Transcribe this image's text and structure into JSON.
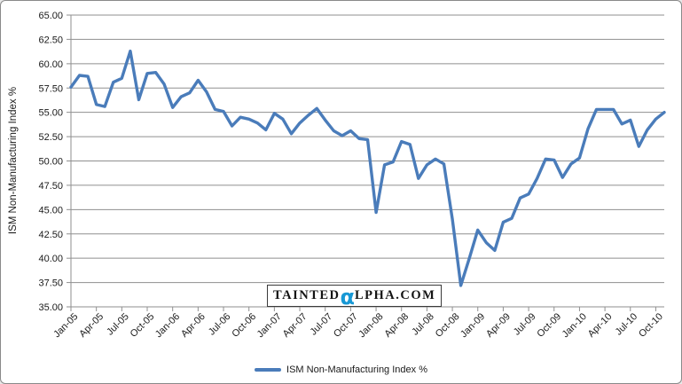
{
  "colors": {
    "line": "#4a7cba",
    "grid": "#8f8f8f",
    "axis_text": "#1a1a1a",
    "watermark_alpha": "#1798d5",
    "background": "#ffffff"
  },
  "watermark": {
    "part1": "TAINTED",
    "alpha": "α",
    "part2": "LPHA.COM"
  },
  "legend": {
    "label": "ISM Non-Manufacturing Index %"
  },
  "chart_data": {
    "type": "line",
    "title": "",
    "xlabel": "",
    "ylabel": "ISM Non-Manufacturing Index %",
    "ylim": [
      35,
      65
    ],
    "y_step": 2.5,
    "grid": true,
    "legend_position": "bottom",
    "y_tick_labels": [
      "65.00",
      "62.50",
      "60.00",
      "57.50",
      "55.00",
      "52.50",
      "50.00",
      "47.50",
      "45.00",
      "42.50",
      "40.00",
      "37.50",
      "35.00"
    ],
    "x_tick_labels": [
      "Jan-05",
      "Apr-05",
      "Jul-05",
      "Oct-05",
      "Jan-06",
      "Apr-06",
      "Jul-06",
      "Oct-06",
      "Jan-07",
      "Apr-07",
      "Jul-07",
      "Oct-07",
      "Jan-08",
      "Apr-08",
      "Jul-08",
      "Oct-08",
      "Jan-09",
      "Apr-09",
      "Jul-09",
      "Oct-09",
      "Jan-10",
      "Apr-10",
      "Jul-10",
      "Oct-10"
    ],
    "x_tick_interval": 3,
    "x": [
      "Jan-05",
      "Feb-05",
      "Mar-05",
      "Apr-05",
      "May-05",
      "Jun-05",
      "Jul-05",
      "Aug-05",
      "Sep-05",
      "Oct-05",
      "Nov-05",
      "Dec-05",
      "Jan-06",
      "Feb-06",
      "Mar-06",
      "Apr-06",
      "May-06",
      "Jun-06",
      "Jul-06",
      "Aug-06",
      "Sep-06",
      "Oct-06",
      "Nov-06",
      "Dec-06",
      "Jan-07",
      "Feb-07",
      "Mar-07",
      "Apr-07",
      "May-07",
      "Jun-07",
      "Jul-07",
      "Aug-07",
      "Sep-07",
      "Oct-07",
      "Nov-07",
      "Dec-07",
      "Jan-08",
      "Feb-08",
      "Mar-08",
      "Apr-08",
      "May-08",
      "Jun-08",
      "Jul-08",
      "Aug-08",
      "Sep-08",
      "Oct-08",
      "Nov-08",
      "Dec-08",
      "Jan-09",
      "Feb-09",
      "Mar-09",
      "Apr-09",
      "May-09",
      "Jun-09",
      "Jul-09",
      "Aug-09",
      "Sep-09",
      "Oct-09",
      "Nov-09",
      "Dec-09",
      "Jan-10",
      "Feb-10",
      "Mar-10",
      "Apr-10",
      "May-10",
      "Jun-10",
      "Jul-10",
      "Aug-10",
      "Sep-10",
      "Oct-10",
      "Nov-10"
    ],
    "series": [
      {
        "name": "ISM Non-Manufacturing Index %",
        "color": "#4a7cba",
        "values": [
          57.6,
          58.8,
          58.7,
          55.8,
          55.6,
          58.1,
          58.5,
          61.3,
          56.3,
          59.0,
          59.1,
          57.9,
          55.5,
          56.6,
          57.0,
          58.3,
          57.1,
          55.3,
          55.1,
          53.6,
          54.5,
          54.3,
          53.9,
          53.2,
          54.9,
          54.3,
          52.8,
          53.9,
          54.7,
          55.4,
          54.2,
          53.1,
          52.6,
          53.1,
          52.3,
          52.2,
          44.7,
          49.6,
          49.9,
          52.0,
          51.7,
          48.2,
          49.6,
          50.2,
          49.7,
          44.0,
          37.2,
          40.0,
          42.9,
          41.6,
          40.8,
          43.7,
          44.1,
          46.2,
          46.6,
          48.2,
          50.2,
          50.1,
          48.3,
          49.7,
          50.3,
          53.3,
          55.3,
          55.3,
          55.3,
          53.8,
          54.2,
          51.5,
          53.2,
          54.3,
          55.0
        ]
      }
    ]
  }
}
